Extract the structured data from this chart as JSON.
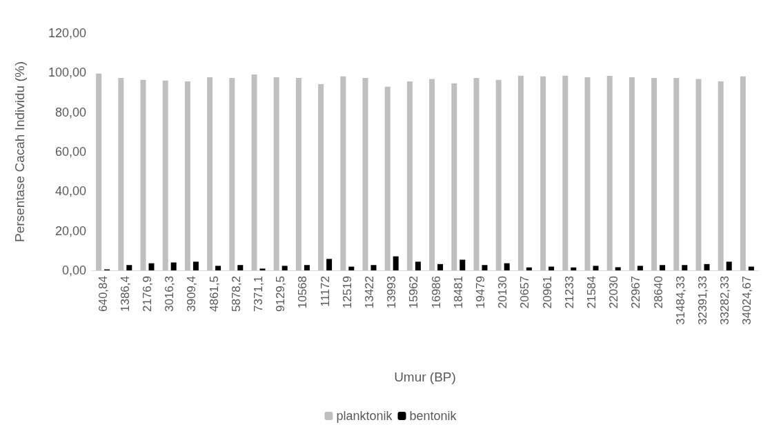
{
  "chart_data": {
    "type": "bar",
    "xlabel": "Umur (BP)",
    "ylabel": "Persentase Cacah Individu (%)",
    "categories": [
      "640,84",
      "1386,4",
      "2176,9",
      "3016,3",
      "3909,4",
      "4861,5",
      "5878,2",
      "7371,1",
      "9129,5",
      "10568",
      "11172",
      "12519",
      "13422",
      "13993",
      "15962",
      "16986",
      "18481",
      "19479",
      "20130",
      "20657",
      "20961",
      "21233",
      "21584",
      "22030",
      "22967",
      "28640",
      "31484,33",
      "32391,33",
      "33282,33",
      "34024,67"
    ],
    "series": [
      {
        "name": "planktonik",
        "color": "#bfbfbf",
        "values": [
          99.5,
          97.3,
          96.4,
          96.0,
          95.6,
          97.7,
          97.3,
          99.1,
          97.7,
          97.3,
          94.2,
          98.1,
          97.3,
          92.9,
          95.6,
          96.8,
          94.6,
          97.3,
          96.4,
          98.5,
          98.1,
          98.5,
          97.7,
          98.4,
          97.7,
          97.3,
          97.3,
          96.8,
          95.6,
          98.1
        ]
      },
      {
        "name": "bentonik",
        "color": "#000000",
        "values": [
          0.5,
          2.7,
          3.6,
          4.0,
          4.4,
          2.3,
          2.7,
          0.9,
          2.3,
          2.7,
          5.8,
          1.9,
          2.7,
          7.1,
          4.4,
          3.2,
          5.4,
          2.7,
          3.6,
          1.5,
          1.9,
          1.5,
          2.3,
          1.6,
          2.3,
          2.7,
          2.7,
          3.2,
          4.4,
          1.9
        ]
      }
    ],
    "ylim": [
      0,
      120
    ],
    "yticks": [
      {
        "value": 0,
        "label": "0,00"
      },
      {
        "value": 20,
        "label": "20,00"
      },
      {
        "value": 40,
        "label": "40,00"
      },
      {
        "value": 60,
        "label": "60,00"
      },
      {
        "value": 80,
        "label": "80,00"
      },
      {
        "value": 100,
        "label": "100,00"
      },
      {
        "value": 120,
        "label": "120,00"
      }
    ],
    "grid": false,
    "legend": "bottom"
  }
}
